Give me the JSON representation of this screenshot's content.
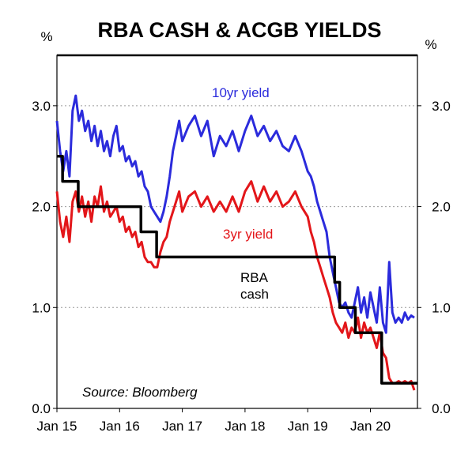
{
  "chart_data": {
    "type": "line",
    "title": "RBA CASH & ACGB YIELDS",
    "left_unit": "%",
    "right_unit": "%",
    "source": "Source: Bloomberg",
    "x_ticks": [
      "Jan 15",
      "Jan 16",
      "Jan 17",
      "Jan 18",
      "Jan 19",
      "Jan 20"
    ],
    "y_ticks": [
      "0.0",
      "1.0",
      "2.0",
      "3.0"
    ],
    "y_tick_values": [
      0,
      1,
      2,
      3
    ],
    "xlim": [
      2015.0,
      2020.75
    ],
    "ylim": [
      0,
      3.5
    ],
    "grid": "horizontal dotted",
    "series": [
      {
        "name": "10yr yield",
        "color": "#2b2bdc",
        "label": "10yr yield",
        "x": [
          2015.0,
          2015.05,
          2015.1,
          2015.15,
          2015.2,
          2015.25,
          2015.3,
          2015.35,
          2015.4,
          2015.45,
          2015.5,
          2015.55,
          2015.6,
          2015.65,
          2015.7,
          2015.75,
          2015.8,
          2015.85,
          2015.9,
          2015.95,
          2016.0,
          2016.05,
          2016.1,
          2016.15,
          2016.2,
          2016.25,
          2016.3,
          2016.35,
          2016.4,
          2016.45,
          2016.5,
          2016.55,
          2016.6,
          2016.65,
          2016.7,
          2016.75,
          2016.8,
          2016.85,
          2016.9,
          2016.95,
          2017.0,
          2017.1,
          2017.2,
          2017.3,
          2017.4,
          2017.5,
          2017.6,
          2017.7,
          2017.8,
          2017.9,
          2018.0,
          2018.1,
          2018.2,
          2018.3,
          2018.4,
          2018.5,
          2018.6,
          2018.7,
          2018.8,
          2018.9,
          2019.0,
          2019.05,
          2019.1,
          2019.15,
          2019.2,
          2019.25,
          2019.3,
          2019.35,
          2019.4,
          2019.45,
          2019.5,
          2019.55,
          2019.6,
          2019.65,
          2019.7,
          2019.75,
          2019.8,
          2019.85,
          2019.9,
          2019.95,
          2020.0,
          2020.05,
          2020.1,
          2020.15,
          2020.2,
          2020.25,
          2020.3,
          2020.35,
          2020.4,
          2020.45,
          2020.5,
          2020.55,
          2020.6,
          2020.65,
          2020.7
        ],
        "y": [
          2.85,
          2.55,
          2.35,
          2.55,
          2.3,
          2.95,
          3.1,
          2.85,
          2.95,
          2.75,
          2.85,
          2.65,
          2.8,
          2.6,
          2.75,
          2.55,
          2.65,
          2.5,
          2.7,
          2.8,
          2.55,
          2.6,
          2.45,
          2.5,
          2.4,
          2.45,
          2.3,
          2.35,
          2.2,
          2.15,
          2.0,
          1.95,
          1.9,
          1.85,
          1.95,
          2.1,
          2.3,
          2.55,
          2.7,
          2.85,
          2.65,
          2.8,
          2.9,
          2.7,
          2.85,
          2.5,
          2.7,
          2.6,
          2.75,
          2.55,
          2.75,
          2.9,
          2.7,
          2.8,
          2.65,
          2.75,
          2.6,
          2.55,
          2.7,
          2.55,
          2.35,
          2.3,
          2.2,
          2.05,
          1.95,
          1.85,
          1.75,
          1.5,
          1.35,
          1.2,
          1.05,
          1.0,
          1.05,
          0.95,
          0.9,
          1.05,
          1.2,
          0.95,
          1.1,
          0.9,
          1.15,
          1.0,
          0.85,
          1.2,
          0.85,
          0.75,
          1.45,
          0.95,
          0.85,
          0.9,
          0.85,
          0.95,
          0.88,
          0.92,
          0.9
        ]
      },
      {
        "name": "3yr yield",
        "color": "#e3161a",
        "label": "3yr yield",
        "x": [
          2015.0,
          2015.05,
          2015.1,
          2015.15,
          2015.2,
          2015.25,
          2015.3,
          2015.35,
          2015.4,
          2015.45,
          2015.5,
          2015.55,
          2015.6,
          2015.65,
          2015.7,
          2015.75,
          2015.8,
          2015.85,
          2015.9,
          2015.95,
          2016.0,
          2016.05,
          2016.1,
          2016.15,
          2016.2,
          2016.25,
          2016.3,
          2016.35,
          2016.4,
          2016.45,
          2016.5,
          2016.55,
          2016.6,
          2016.65,
          2016.7,
          2016.75,
          2016.8,
          2016.85,
          2016.9,
          2016.95,
          2017.0,
          2017.1,
          2017.2,
          2017.3,
          2017.4,
          2017.5,
          2017.6,
          2017.7,
          2017.8,
          2017.9,
          2018.0,
          2018.1,
          2018.2,
          2018.3,
          2018.4,
          2018.5,
          2018.6,
          2018.7,
          2018.8,
          2018.9,
          2019.0,
          2019.05,
          2019.1,
          2019.15,
          2019.2,
          2019.25,
          2019.3,
          2019.35,
          2019.4,
          2019.45,
          2019.5,
          2019.55,
          2019.6,
          2019.65,
          2019.7,
          2019.75,
          2019.8,
          2019.85,
          2019.9,
          2019.95,
          2020.0,
          2020.05,
          2020.1,
          2020.15,
          2020.2,
          2020.25,
          2020.3,
          2020.35,
          2020.4,
          2020.45,
          2020.5,
          2020.55,
          2020.6,
          2020.65,
          2020.7
        ],
        "y": [
          2.15,
          1.85,
          1.7,
          1.9,
          1.65,
          2.05,
          2.15,
          1.95,
          2.1,
          1.9,
          2.05,
          1.85,
          2.1,
          2.0,
          2.2,
          1.95,
          2.05,
          1.9,
          1.95,
          2.0,
          1.85,
          1.9,
          1.75,
          1.8,
          1.7,
          1.75,
          1.6,
          1.65,
          1.5,
          1.45,
          1.45,
          1.4,
          1.4,
          1.55,
          1.65,
          1.7,
          1.85,
          1.95,
          2.05,
          2.15,
          1.95,
          2.1,
          2.15,
          2.0,
          2.1,
          1.95,
          2.05,
          1.95,
          2.1,
          1.95,
          2.15,
          2.25,
          2.05,
          2.2,
          2.05,
          2.15,
          2.0,
          2.05,
          2.15,
          2.0,
          1.9,
          1.75,
          1.65,
          1.5,
          1.4,
          1.3,
          1.2,
          1.1,
          0.95,
          0.85,
          0.8,
          0.75,
          0.85,
          0.7,
          0.8,
          0.75,
          0.9,
          0.7,
          0.85,
          0.75,
          0.8,
          0.7,
          0.6,
          0.75,
          0.55,
          0.5,
          0.3,
          0.25,
          0.25,
          0.27,
          0.25,
          0.27,
          0.25,
          0.27,
          0.18
        ]
      },
      {
        "name": "RBA cash",
        "color": "#000000",
        "label": "RBA\ncash",
        "step": true,
        "x": [
          2015.0,
          2015.09,
          2015.34,
          2016.34,
          2016.59,
          2019.43,
          2019.51,
          2019.76,
          2020.18,
          2020.75
        ],
        "y": [
          2.5,
          2.25,
          2.0,
          1.75,
          1.5,
          1.25,
          1.0,
          0.75,
          0.25,
          0.25
        ]
      }
    ]
  }
}
